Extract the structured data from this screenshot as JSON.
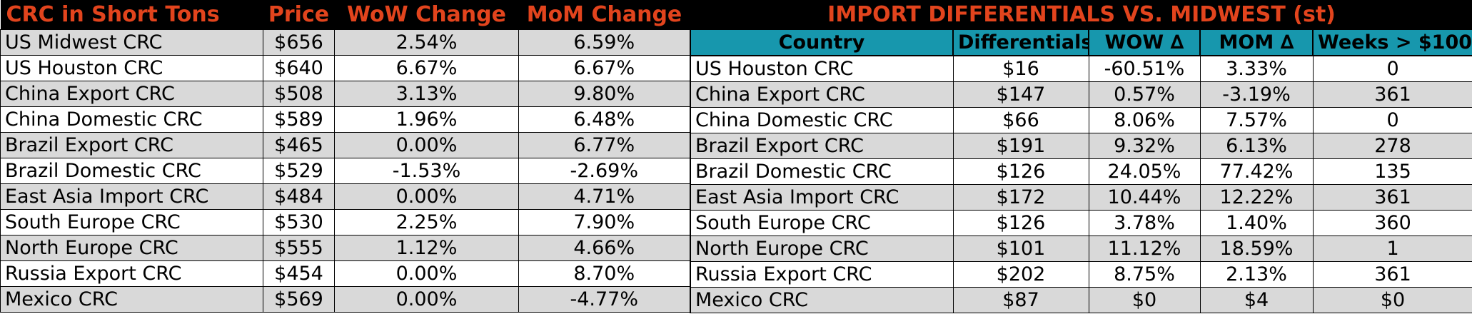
{
  "left": {
    "headers": [
      "CRC in Short Tons",
      "Price",
      "WoW Change",
      "MoM Change"
    ],
    "rows": [
      [
        "US Midwest CRC",
        "$656",
        "2.54%",
        "6.59%"
      ],
      [
        "US Houston CRC",
        "$640",
        "6.67%",
        "6.67%"
      ],
      [
        "China Export CRC",
        "$508",
        "3.13%",
        "9.80%"
      ],
      [
        "China Domestic CRC",
        "$589",
        "1.96%",
        "6.48%"
      ],
      [
        "Brazil Export CRC",
        "$465",
        "0.00%",
        "6.77%"
      ],
      [
        "Brazil Domestic CRC",
        "$529",
        "-1.53%",
        "-2.69%"
      ],
      [
        "East Asia Import CRC",
        "$484",
        "0.00%",
        "4.71%"
      ],
      [
        "South Europe CRC",
        "$530",
        "2.25%",
        "7.90%"
      ],
      [
        "North Europe CRC",
        "$555",
        "1.12%",
        "4.66%"
      ],
      [
        "Russia Export CRC",
        "$454",
        "0.00%",
        "8.70%"
      ],
      [
        "Mexico CRC",
        "$569",
        "0.00%",
        "-4.77%"
      ]
    ]
  },
  "right": {
    "title": "IMPORT DIFFERENTIALS VS. MIDWEST (st)",
    "headers": [
      "Country",
      "Differentials",
      "WOW ∆",
      "MOM ∆",
      "Weeks > $100"
    ],
    "rows": [
      [
        "US Houston CRC",
        "$16",
        "-60.51%",
        "3.33%",
        "0"
      ],
      [
        "China Export CRC",
        "$147",
        "0.57%",
        "-3.19%",
        "361"
      ],
      [
        "China Domestic CRC",
        "$66",
        "8.06%",
        "7.57%",
        "0"
      ],
      [
        "Brazil Export CRC",
        "$191",
        "9.32%",
        "6.13%",
        "278"
      ],
      [
        "Brazil Domestic CRC",
        "$126",
        "24.05%",
        "77.42%",
        "135"
      ],
      [
        "East Asia Import CRC",
        "$172",
        "10.44%",
        "12.22%",
        "361"
      ],
      [
        "South Europe CRC",
        "$126",
        "3.78%",
        "1.40%",
        "360"
      ],
      [
        "North Europe CRC",
        "$101",
        "11.12%",
        "18.59%",
        "1"
      ],
      [
        "Russia Export CRC",
        "$202",
        "8.75%",
        "2.13%",
        "361"
      ],
      [
        "Mexico CRC",
        "$87",
        "$0",
        "$4",
        "$0"
      ]
    ]
  },
  "colors": {
    "header_bg": "#000000",
    "header_text": "#e2441d",
    "subheader_bg": "#1797ad",
    "row_alt_bg": "#d9d9d9",
    "row_bg": "#ffffff"
  }
}
